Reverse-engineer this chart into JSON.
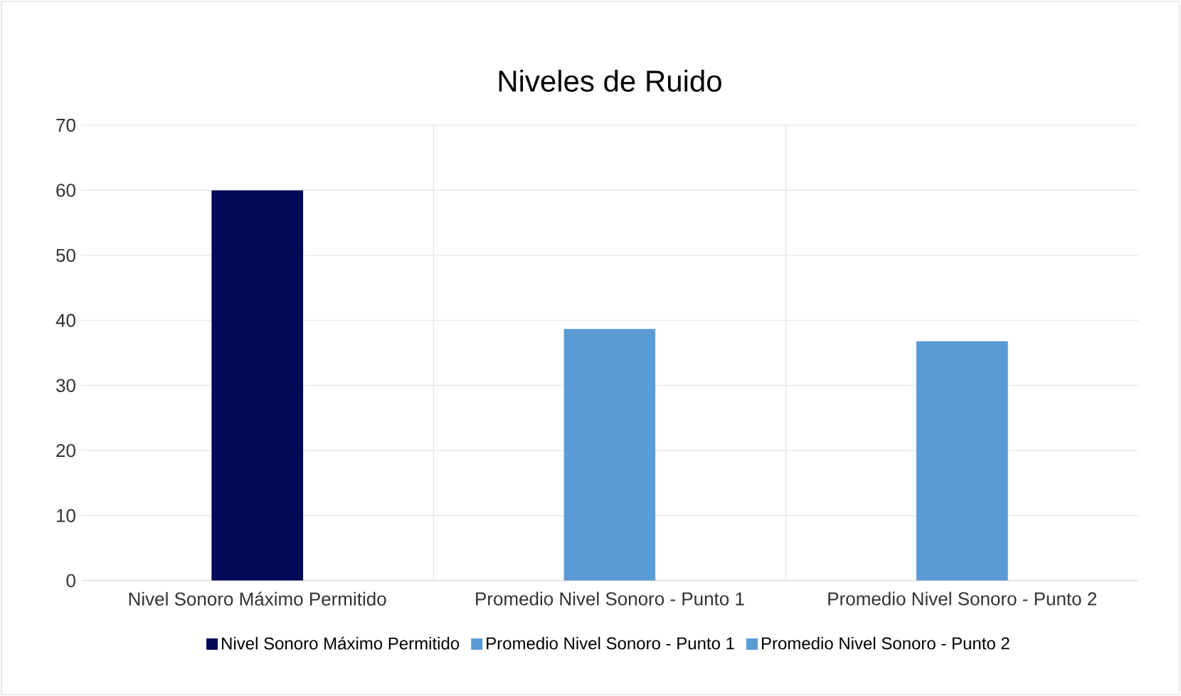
{
  "chart_data": {
    "type": "bar",
    "title": "Niveles de Ruido",
    "categories": [
      "Nivel Sonoro Máximo Permitido",
      "Promedio Nivel Sonoro - Punto 1",
      "Promedio Nivel Sonoro - Punto 2"
    ],
    "series": [
      {
        "name": "Nivel Sonoro Máximo Permitido",
        "color": "#000a55",
        "values": [
          60,
          null,
          null
        ]
      },
      {
        "name": "Promedio Nivel Sonoro - Punto 1",
        "color": "#5b9bd5",
        "values": [
          null,
          38.7,
          null
        ]
      },
      {
        "name": "Promedio Nivel Sonoro - Punto 2",
        "color": "#5b9bd5",
        "values": [
          null,
          null,
          36.8
        ]
      }
    ],
    "ylim": [
      0,
      70
    ],
    "yticks": [
      0,
      10,
      20,
      30,
      40,
      50,
      60,
      70
    ],
    "grid": true,
    "legend": "bottom"
  }
}
